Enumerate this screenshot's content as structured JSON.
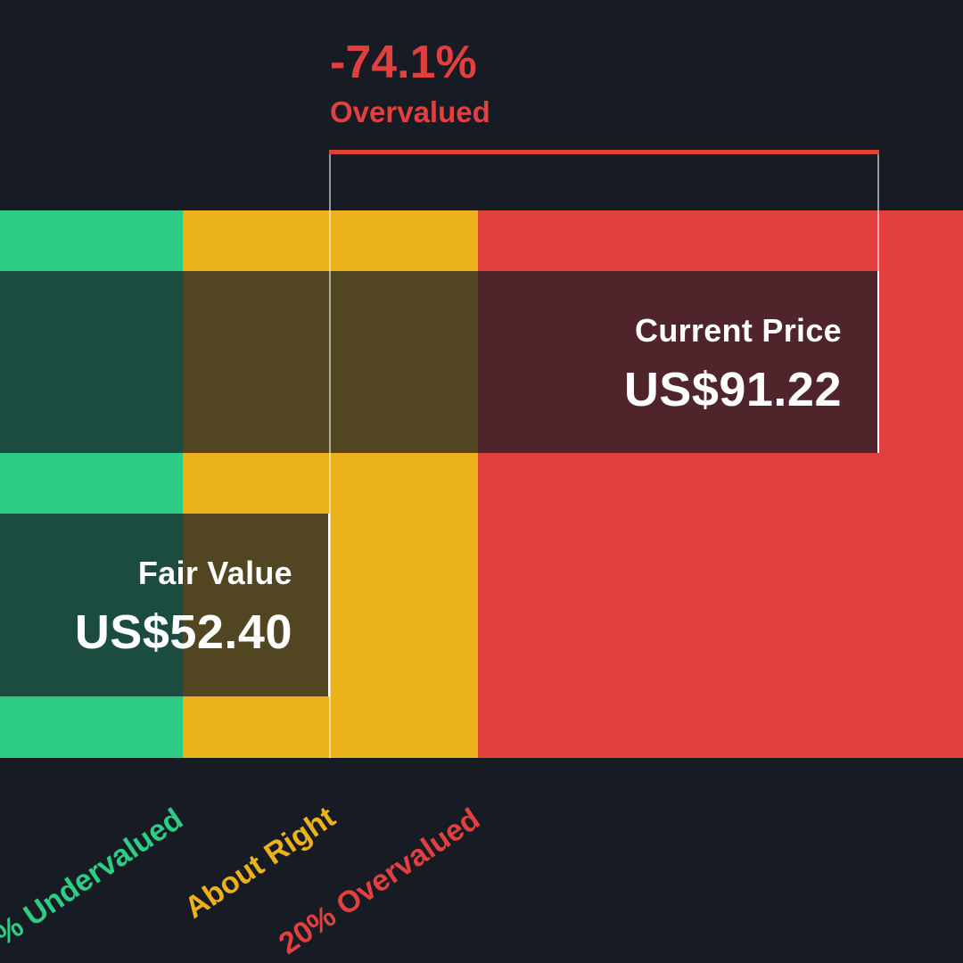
{
  "colors": {
    "background": "#161b24",
    "undervalued": "#2ecc84",
    "about_right": "#ecb21c",
    "overvalued": "#e2403f",
    "box_fill": "rgba(22,27,36,0.72)",
    "text": "#ffffff"
  },
  "headline": {
    "percentage": "-74.1%",
    "label": "Overvalued"
  },
  "current_price": {
    "label": "Current Price",
    "value": "US$91.22"
  },
  "fair_value": {
    "label": "Fair Value",
    "value": "US$52.40"
  },
  "zones": {
    "undervalued_label": "% Undervalued",
    "about_right_label": "About Right",
    "overvalued_label": "20% Overvalued"
  },
  "chart_data": {
    "type": "bar",
    "categories": [
      "Current Price",
      "Fair Value"
    ],
    "values": [
      91.22,
      52.4
    ],
    "unit": "US$",
    "difference_percent": -74.1,
    "verdict": "Overvalued",
    "zones": [
      {
        "name": "Undervalued",
        "range_relative_to_fair_value": "below -20%"
      },
      {
        "name": "About Right",
        "range_relative_to_fair_value": "-20% to +20%"
      },
      {
        "name": "Overvalued",
        "range_relative_to_fair_value": "above +20%"
      }
    ],
    "legend": "none",
    "grid": false
  }
}
